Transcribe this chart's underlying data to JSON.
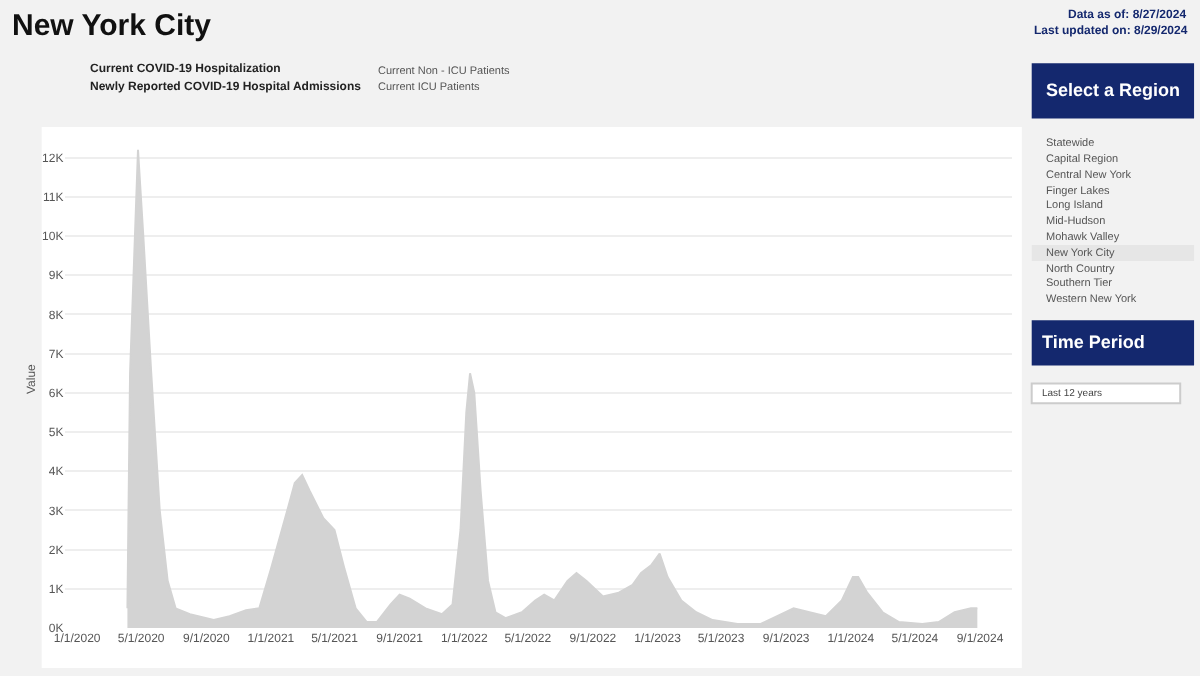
{
  "chart_data": {
    "type": "area",
    "title": "New York City",
    "ylabel": "Value",
    "annotations": [
      "Data as of: 8/27/2024",
      "Last updated on: 8/29/2024",
      "Current COVID-19 Hospitalization",
      "Newly Reported COVID-19 Hospital Admissions",
      "Current Non - ICU Patients",
      "Current ICU Patients",
      "Select a Region",
      "Statewide",
      "Capital Region",
      "Central New York",
      "Finger Lakes",
      "Long Island",
      "Mid-Hudson",
      "Mohawk Valley",
      "New York City",
      "North Country",
      "Southern Tier",
      "Western New York",
      "Time Period",
      "Last 12 years"
    ],
    "x": [
      "2020-04-05",
      "2020-04-10",
      "2020-04-25",
      "2020-05-05",
      "2020-05-20",
      "2020-06-05",
      "2020-06-20",
      "2020-07-05",
      "2020-08-01",
      "2020-09-15",
      "2020-10-15",
      "2020-11-15",
      "2020-12-10",
      "2021-01-01",
      "2021-02-01",
      "2021-02-15",
      "2021-03-01",
      "2021-03-15",
      "2021-04-10",
      "2021-05-01",
      "2021-05-20",
      "2021-06-10",
      "2021-07-01",
      "2021-07-20",
      "2021-08-15",
      "2021-09-01",
      "2021-09-20",
      "2021-10-20",
      "2021-11-20",
      "2021-12-10",
      "2021-12-25",
      "2022-01-05",
      "2022-01-12",
      "2022-01-20",
      "2022-02-01",
      "2022-02-15",
      "2022-03-01",
      "2022-03-20",
      "2022-04-20",
      "2022-05-15",
      "2022-06-01",
      "2022-06-20",
      "2022-07-15",
      "2022-08-01",
      "2022-08-20",
      "2022-09-20",
      "2022-10-20",
      "2022-11-15",
      "2022-12-01",
      "2022-12-20",
      "2023-01-05",
      "2023-01-20",
      "2023-02-15",
      "2023-03-15",
      "2023-04-15",
      "2023-06-01",
      "2023-07-15",
      "2023-08-15",
      "2023-09-15",
      "2023-10-15",
      "2023-11-15",
      "2023-12-15",
      "2024-01-05",
      "2024-01-15",
      "2024-02-01",
      "2024-03-01",
      "2024-04-01",
      "2024-05-15",
      "2024-06-15",
      "2024-07-15",
      "2024-08-15",
      "2024-08-27"
    ],
    "series": [
      {
        "color": "#d3d3d3",
        "values": [
          500,
          6500,
          12200,
          10000,
          6500,
          3000,
          1200,
          500,
          350,
          200,
          300,
          450,
          500,
          1500,
          3000,
          3700,
          3900,
          3500,
          2800,
          2500,
          1500,
          500,
          150,
          150,
          600,
          850,
          750,
          500,
          350,
          600,
          2500,
          5500,
          6500,
          6000,
          3500,
          1200,
          400,
          250,
          400,
          700,
          850,
          700,
          1200,
          1400,
          1200,
          800,
          900,
          1100,
          1400,
          1600,
          1900,
          1300,
          700,
          400,
          200,
          100,
          100,
          300,
          500,
          400,
          300,
          700,
          1300,
          1300,
          900,
          400,
          150,
          100,
          150,
          400,
          500,
          500
        ]
      }
    ],
    "xlim": [
      "2019-12-10",
      "2024-11-01"
    ],
    "xticks": [
      {
        "value": "2020-01-01",
        "label": "1/1/2020"
      },
      {
        "value": "2020-05-01",
        "label": "5/1/2020"
      },
      {
        "value": "2020-09-01",
        "label": "9/1/2020"
      },
      {
        "value": "2021-01-01",
        "label": "1/1/2021"
      },
      {
        "value": "2021-05-01",
        "label": "5/1/2021"
      },
      {
        "value": "2021-09-01",
        "label": "9/1/2021"
      },
      {
        "value": "2022-01-01",
        "label": "1/1/2022"
      },
      {
        "value": "2022-05-01",
        "label": "5/1/2022"
      },
      {
        "value": "2022-09-01",
        "label": "9/1/2022"
      },
      {
        "value": "2023-01-01",
        "label": "1/1/2023"
      },
      {
        "value": "2023-05-01",
        "label": "5/1/2023"
      },
      {
        "value": "2023-09-01",
        "label": "9/1/2023"
      },
      {
        "value": "2024-01-01",
        "label": "1/1/2024"
      },
      {
        "value": "2024-05-01",
        "label": "5/1/2024"
      },
      {
        "value": "2024-09-01",
        "label": "9/1/2024"
      }
    ],
    "ylim": [
      0,
      12700
    ],
    "yticks": [
      {
        "value": 0,
        "label": "0K"
      },
      {
        "value": 1000,
        "label": "1K"
      },
      {
        "value": 2000,
        "label": "2K"
      },
      {
        "value": 3000,
        "label": "3K"
      },
      {
        "value": 4000,
        "label": "4K"
      },
      {
        "value": 5000,
        "label": "5K"
      },
      {
        "value": 6000,
        "label": "6K"
      },
      {
        "value": 7000,
        "label": "7K"
      },
      {
        "value": 8000,
        "label": "8K"
      },
      {
        "value": 9000,
        "label": "9K"
      },
      {
        "value": 10000,
        "label": "10K"
      },
      {
        "value": 11000,
        "label": "11K"
      },
      {
        "value": 12000,
        "label": "12K"
      }
    ],
    "grid": "y",
    "marker": "none"
  }
}
